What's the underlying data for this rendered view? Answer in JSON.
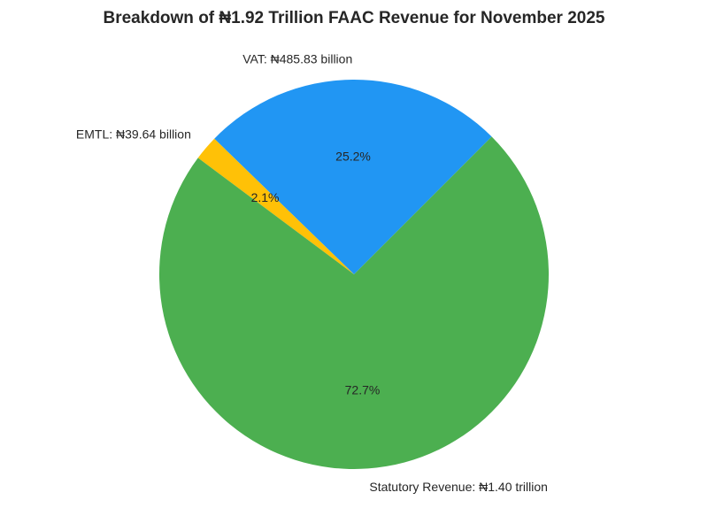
{
  "chart_data": {
    "type": "pie",
    "title": "Breakdown of ₦1.92 Trillion FAAC Revenue for November 2025",
    "start_angle_deg": 45,
    "direction": "counterclockwise",
    "legend": "none",
    "slices": [
      {
        "label": "VAT: ₦485.83 billion",
        "value": 485.83,
        "percent_label": "25.2%",
        "color": "#2196F3"
      },
      {
        "label": "EMTL: ₦39.64 billion",
        "value": 39.64,
        "percent_label": "2.1%",
        "color": "#FFC107"
      },
      {
        "label": "Statutory Revenue: ₦1.40 trillion",
        "value": 1400,
        "percent_label": "72.7%",
        "color": "#4CAF50"
      }
    ]
  }
}
